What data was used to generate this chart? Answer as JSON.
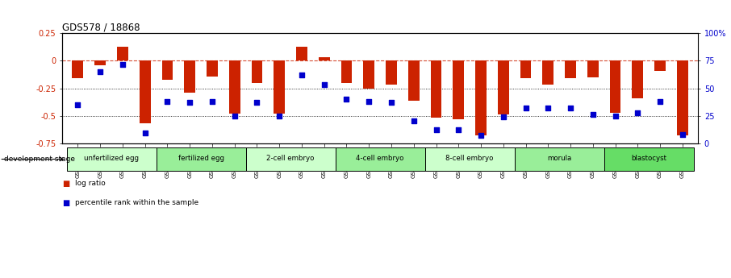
{
  "title": "GDS578 / 18868",
  "samples": [
    "GSM14658",
    "GSM14660",
    "GSM14661",
    "GSM14662",
    "GSM14663",
    "GSM14664",
    "GSM14665",
    "GSM14666",
    "GSM14667",
    "GSM14668",
    "GSM14677",
    "GSM14678",
    "GSM14679",
    "GSM14680",
    "GSM14681",
    "GSM14682",
    "GSM14683",
    "GSM14684",
    "GSM14685",
    "GSM14686",
    "GSM14687",
    "GSM14688",
    "GSM14689",
    "GSM14690",
    "GSM14691",
    "GSM14692",
    "GSM14693",
    "GSM14694"
  ],
  "log_ratio": [
    -0.16,
    -0.04,
    0.13,
    -0.57,
    -0.17,
    -0.29,
    -0.14,
    -0.48,
    -0.2,
    -0.48,
    0.13,
    0.03,
    -0.2,
    -0.25,
    -0.22,
    -0.36,
    -0.52,
    -0.53,
    -0.68,
    -0.49,
    -0.16,
    -0.22,
    -0.16,
    -0.15,
    -0.47,
    -0.34,
    -0.09,
    -0.68
  ],
  "percentile": [
    35,
    65,
    72,
    9,
    38,
    37,
    38,
    25,
    37,
    25,
    62,
    53,
    40,
    38,
    37,
    20,
    12,
    12,
    7,
    24,
    32,
    32,
    32,
    26,
    25,
    28,
    38,
    8
  ],
  "stage_groups": [
    {
      "label": "unfertilized egg",
      "start": 0,
      "end": 4,
      "color": "#ccffcc"
    },
    {
      "label": "fertilized egg",
      "start": 4,
      "end": 8,
      "color": "#99ee99"
    },
    {
      "label": "2-cell embryo",
      "start": 8,
      "end": 12,
      "color": "#ccffcc"
    },
    {
      "label": "4-cell embryo",
      "start": 12,
      "end": 16,
      "color": "#99ee99"
    },
    {
      "label": "8-cell embryo",
      "start": 16,
      "end": 20,
      "color": "#ccffcc"
    },
    {
      "label": "morula",
      "start": 20,
      "end": 24,
      "color": "#99ee99"
    },
    {
      "label": "blastocyst",
      "start": 24,
      "end": 28,
      "color": "#66dd66"
    }
  ],
  "bar_color": "#cc2200",
  "dot_color": "#0000cc",
  "ylim_left": [
    -0.75,
    0.25
  ],
  "ylim_right": [
    0,
    100
  ],
  "hlines_dotted": [
    -0.25,
    -0.5
  ],
  "right_yticks": [
    0,
    25,
    50,
    75,
    100
  ],
  "right_ytick_labels": [
    "0",
    "25",
    "50",
    "75",
    "100%"
  ],
  "left_yticks": [
    -0.75,
    -0.5,
    -0.25,
    0.0,
    0.25
  ],
  "left_ytick_labels": [
    "-0.75",
    "-0.5",
    "-0.25",
    "0",
    "0.25"
  ]
}
